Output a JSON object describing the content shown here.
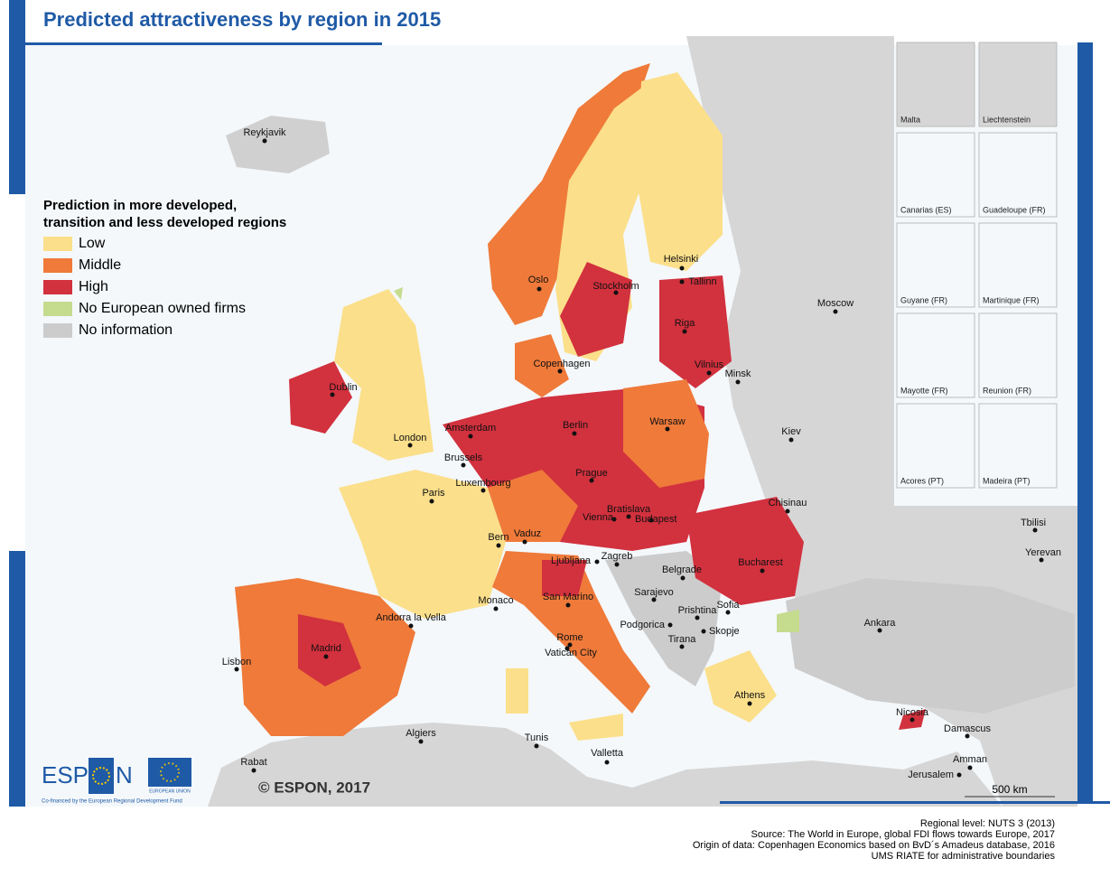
{
  "title": "Predicted attractiveness by region in 2015",
  "legend": {
    "title_lines": [
      "Prediction in more developed,",
      "transition and less developed regions"
    ],
    "items": [
      {
        "label": "Low",
        "color": "#fbdf8a"
      },
      {
        "label": "Middle",
        "color": "#ef7a3a"
      },
      {
        "label": "High",
        "color": "#d2313e"
      },
      {
        "label": "No European owned firms",
        "color": "#c5dc8e"
      },
      {
        "label": "No information",
        "color": "#cccccc"
      }
    ]
  },
  "cities": [
    "Reykjavik",
    "Helsinki",
    "Oslo",
    "Stockholm",
    "Tallinn",
    "Moscow",
    "Riga",
    "Copenhagen",
    "Vilnius",
    "Minsk",
    "Dublin",
    "Amsterdam",
    "Berlin",
    "Warsaw",
    "Kiev",
    "London",
    "Brussels",
    "Luxembourg",
    "Prague",
    "Paris",
    "Bratislava",
    "Vienna",
    "Budapest",
    "Chisinau",
    "Bern",
    "Vaduz",
    "Tbilisi",
    "Ljubljana",
    "Zagreb",
    "Yerevan",
    "Bucharest",
    "Belgrade",
    "Sarajevo",
    "Monaco",
    "San Marino",
    "Prishtina",
    "Sofia",
    "Andorra la Vella",
    "Ankara",
    "Podgorica",
    "Skopje",
    "Tirana",
    "Madrid",
    "Rome",
    "Vatican City",
    "Lisbon",
    "Athens",
    "Nicosia",
    "Algiers",
    "Damascus",
    "Tunis",
    "Valletta",
    "Rabat",
    "Amman",
    "Jerusalem"
  ],
  "insets": [
    "Malta",
    "Liechtenstein",
    "Canarias (ES)",
    "Guadeloupe (FR)",
    "Guyane (FR)",
    "Martinique (FR)",
    "Mayotte (FR)",
    "Reunion (FR)",
    "Acores (PT)",
    "Madeira (PT)"
  ],
  "logo": {
    "left": "ESP",
    "right": "N",
    "eu": "EUROPEAN UNION",
    "cofinance": "Co-financed by the European Regional Development Fund"
  },
  "copyright": "© ESPON, 2017",
  "scale": "500 km",
  "footer": [
    "Regional level: NUTS 3 (2013)",
    "Source: The World in Europe, global FDI flows towards Europe, 2017",
    "Origin of data: Copenhagen Economics based on BvD´s Amadeus database, 2016",
    "UMS RIATE for administrative boundaries"
  ]
}
